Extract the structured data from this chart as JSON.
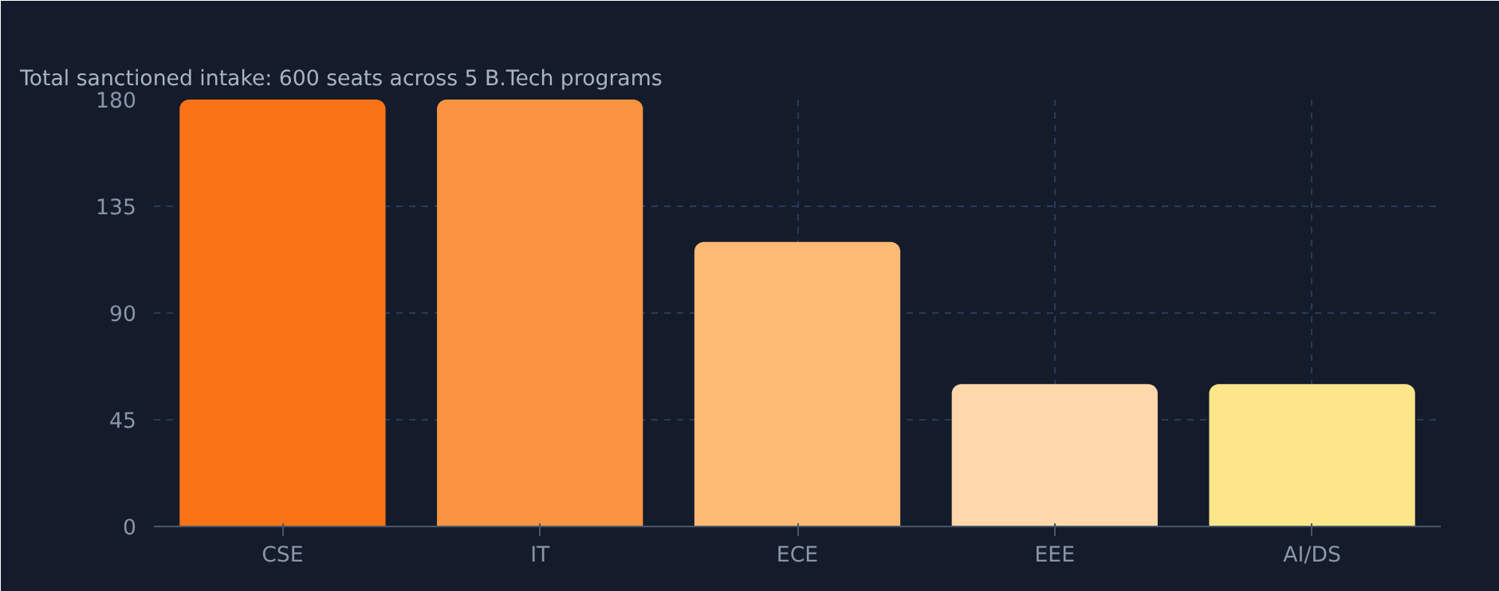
{
  "chart_data": {
    "type": "bar",
    "title": "Total sanctioned intake: 600 seats across 5 B.Tech programs",
    "categories": [
      "CSE",
      "IT",
      "ECE",
      "EEE",
      "AI/DS"
    ],
    "values": [
      180,
      180,
      120,
      60,
      60
    ],
    "colors": [
      "#f97316",
      "#fb9440",
      "#fdba74",
      "#fed7aa",
      "#fde68a"
    ],
    "ylim": [
      0,
      180
    ],
    "yticks": [
      0,
      45,
      90,
      135,
      180
    ],
    "grid": true
  }
}
